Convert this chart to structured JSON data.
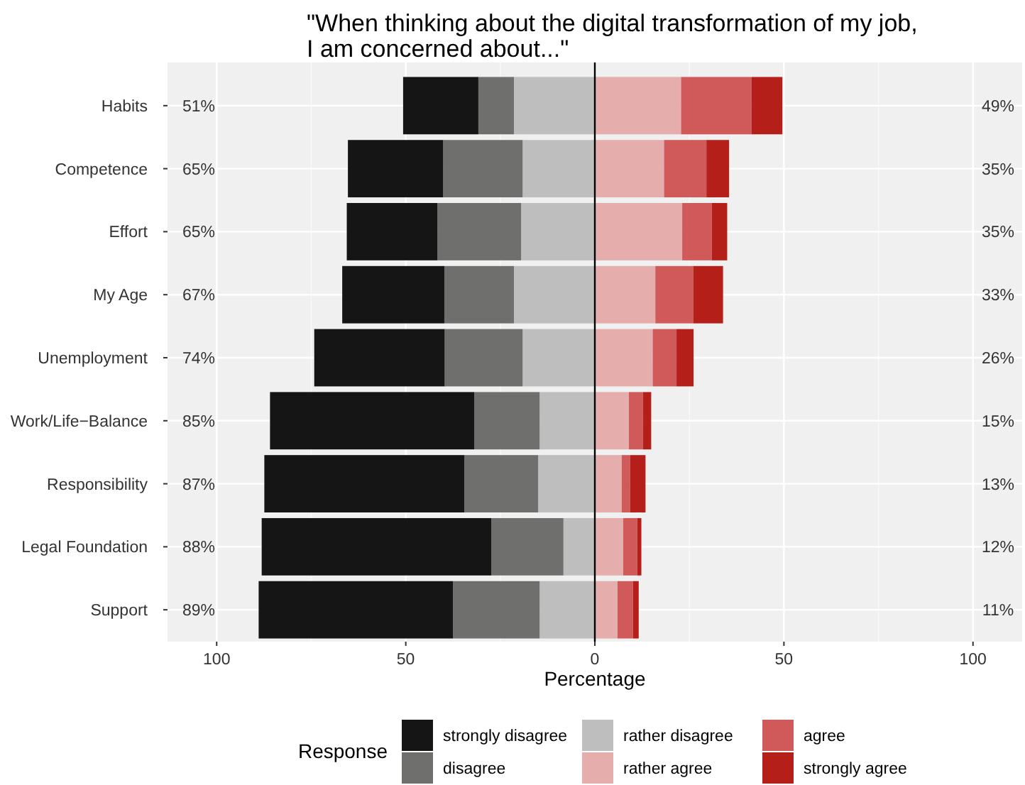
{
  "chart_data": {
    "type": "bar",
    "orientation": "horizontal",
    "stacked": true,
    "title": "\"When thinking about the digital transformation of my job,\nI am concerned about...\"",
    "xlabel": "Percentage",
    "legend_title": "Response",
    "legend": "bottom",
    "grid": true,
    "categories": [
      "Habits",
      "Competence",
      "Effort",
      "My Age",
      "Unemployment",
      "Work/Life−Balance",
      "Responsibility",
      "Legal Foundation",
      "Support"
    ],
    "xlim": [
      -113,
      113
    ],
    "xticks": [
      {
        "value": -100,
        "label": "100"
      },
      {
        "value": -50,
        "label": "50"
      },
      0,
      50,
      100
    ],
    "series": [
      {
        "name": "rather disagree",
        "color": "#bdbebd",
        "values": [
          -21.4,
          -19.1,
          -19.5,
          -21.4,
          -19.1,
          -14.6,
          -15,
          -8.3,
          -14.6
        ]
      },
      {
        "name": "disagree",
        "color": "#6f6f6d",
        "values": [
          -9.4,
          -21,
          -22.1,
          -18.4,
          -20.6,
          -17.3,
          -19.5,
          -19.1,
          -22.9
        ]
      },
      {
        "name": "strongly disagree",
        "color": "#151515",
        "values": [
          -19.9,
          -25.2,
          -24,
          -27,
          -34.5,
          -54,
          -52.9,
          -60.7,
          -51.4
        ]
      },
      {
        "name": "rather agree",
        "color": "#e5adac",
        "values": [
          22.8,
          18.3,
          23.1,
          16,
          15.3,
          9,
          7.1,
          7.5,
          6
        ]
      },
      {
        "name": "agree",
        "color": "#d05a59",
        "values": [
          18.6,
          11.2,
          7.8,
          10,
          6.3,
          3.7,
          2.2,
          3.7,
          4.1
        ]
      },
      {
        "name": "strongly agree",
        "color": "#b42019",
        "values": [
          8.2,
          6,
          4.1,
          7.9,
          4.5,
          2.2,
          4.1,
          1.1,
          1.5
        ]
      }
    ],
    "ref_lines": [
      {
        "axis": "x",
        "value": 0,
        "color": "#000000"
      }
    ],
    "annotations": [
      "51%",
      "65%",
      "65%",
      "67%",
      "74%",
      "85%",
      "87%",
      "88%",
      "89%",
      "49%",
      "35%",
      "35%",
      "33%",
      "26%",
      "15%",
      "13%",
      "12%",
      "11%"
    ]
  }
}
